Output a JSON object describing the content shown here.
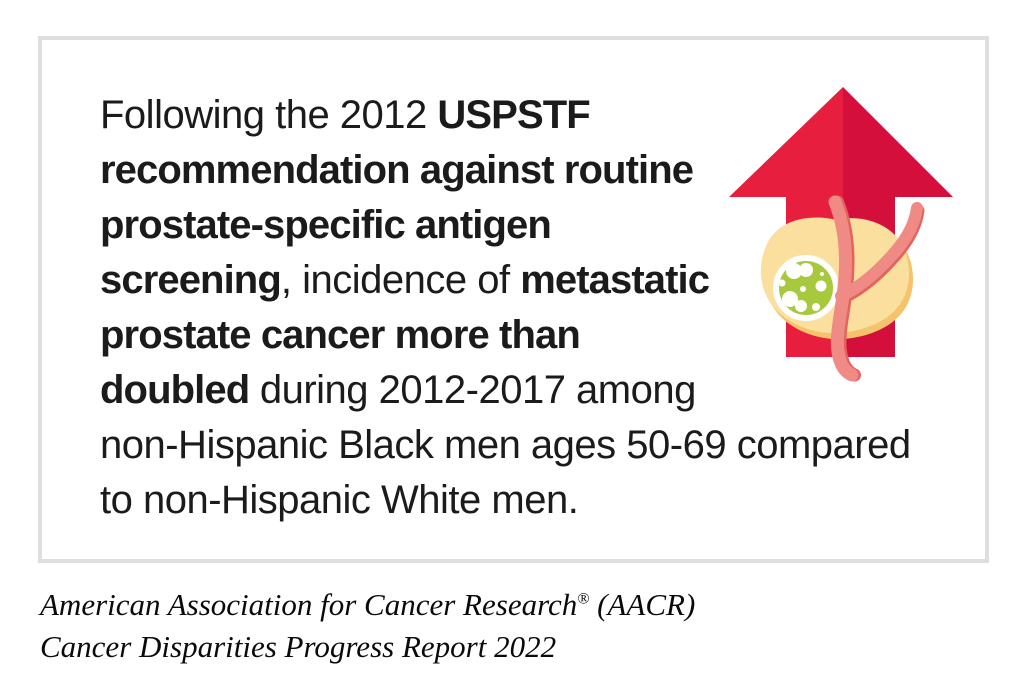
{
  "statement": {
    "lines": [
      [
        {
          "text": "Following the 2012 ",
          "bold": false
        },
        {
          "text": "USPSTF",
          "bold": true
        }
      ],
      [
        {
          "text": "recommendation against routine",
          "bold": true
        }
      ],
      [
        {
          "text": "prostate-specific antigen",
          "bold": true
        }
      ],
      [
        {
          "text": "screening",
          "bold": true
        },
        {
          "text": ", incidence of ",
          "bold": false
        },
        {
          "text": "metastatic",
          "bold": true
        }
      ],
      [
        {
          "text": "prostate cancer more than",
          "bold": true
        }
      ],
      [
        {
          "text": "doubled",
          "bold": true
        },
        {
          "text": " during 2012-2017 among",
          "bold": false
        }
      ],
      [
        {
          "text": "non-Hispanic Black men ages 50-69 compared",
          "bold": false
        }
      ],
      [
        {
          "text": "to non-Hispanic White men.",
          "bold": false
        }
      ]
    ]
  },
  "illustration": {
    "label": "red upward arrow behind prostate gland with green tumor and blood vessel",
    "colors": {
      "arrow_light": "#E81E3E",
      "arrow_dark": "#D50F3C",
      "prostate_light": "#FBDF9E",
      "prostate_shadow": "#F4C46D",
      "tumor_green": "#A8C93E",
      "tumor_ring": "#FFFFFF",
      "tumor_spots": "#FFFFFF",
      "vessel_light": "#F08A84",
      "vessel_dark": "#E3635E"
    }
  },
  "source": {
    "org": "American Association for Cancer Research",
    "registered_mark": "®",
    "org_suffix": " (AACR)",
    "report": "Cancer Disparities Progress Report 2022"
  },
  "theme": {
    "background": "#FFFFFF",
    "card_border": "#DEDEE0",
    "text_color": "#1B1B1B"
  }
}
